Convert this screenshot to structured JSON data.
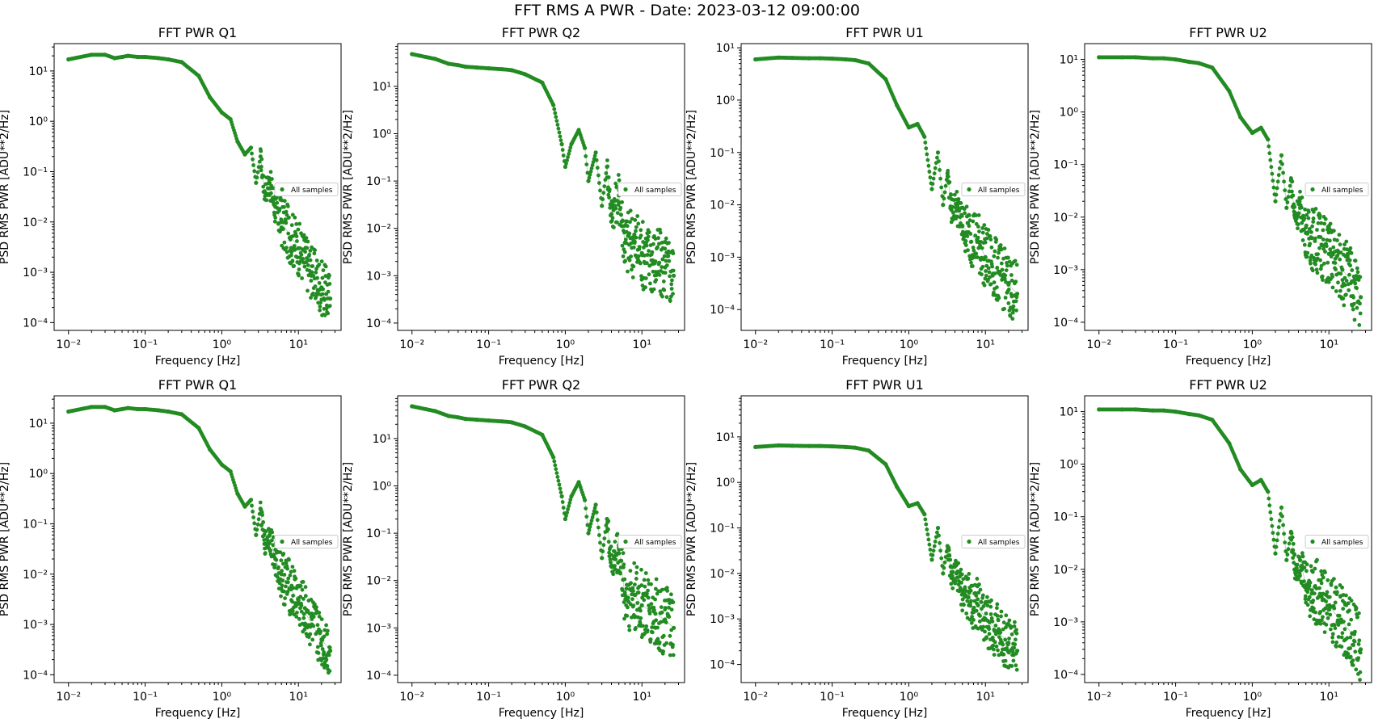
{
  "figure_title": "FFT RMS A PWR - Date: 2023-03-12 09:00:00",
  "colors": {
    "series": "#228B22",
    "axes": "#000000",
    "background": "#ffffff",
    "legend_border": "#cccccc"
  },
  "chart_data": [
    {
      "type": "scatter",
      "title": "FFT PWR Q1",
      "xlabel": "Frequency [Hz]",
      "ylabel": "PSD RMS PWR [ADU**2/Hz]",
      "xscale": "log",
      "yscale": "log",
      "xlim": [
        0.0065,
        36
      ],
      "ylim": [
        7e-05,
        35
      ],
      "yticks_exp": [
        -4,
        -3,
        -2,
        -1,
        0,
        1
      ],
      "xticks_exp": [
        -2,
        -1,
        0,
        1
      ],
      "legend": "All samples",
      "legend_loc": "center right",
      "series": [
        {
          "name": "All samples",
          "x": [
            0.01,
            0.02,
            0.03,
            0.04,
            0.05,
            0.06,
            0.08,
            0.1,
            0.15,
            0.2,
            0.3,
            0.5,
            0.7,
            1.0,
            1.3,
            1.6,
            2.0,
            2.4,
            2.8,
            3.2,
            3.6,
            4.2,
            5,
            6,
            8,
            10,
            15,
            20,
            26
          ],
          "y": [
            17,
            21,
            21,
            18,
            19,
            20,
            19,
            19,
            18,
            17,
            15,
            8,
            3,
            1.5,
            1.1,
            0.4,
            0.22,
            0.3,
            0.06,
            0.2,
            0.04,
            0.06,
            0.02,
            0.01,
            0.005,
            0.003,
            0.001,
            0.0005,
            0.0003
          ],
          "spread": 0.55
        }
      ]
    },
    {
      "type": "scatter",
      "title": "FFT PWR Q2",
      "xlabel": "Frequency [Hz]",
      "ylabel": "PSD RMS PWR [ADU**2/Hz]",
      "xscale": "log",
      "yscale": "log",
      "xlim": [
        0.0065,
        36
      ],
      "ylim": [
        7e-05,
        80
      ],
      "yticks_exp": [
        -4,
        -3,
        -2,
        -1,
        0,
        1
      ],
      "xticks_exp": [
        -2,
        -1,
        0,
        1
      ],
      "legend": "All samples",
      "legend_loc": "center right",
      "series": [
        {
          "name": "All samples",
          "x": [
            0.01,
            0.02,
            0.03,
            0.04,
            0.05,
            0.07,
            0.1,
            0.15,
            0.2,
            0.3,
            0.5,
            0.7,
            0.9,
            1.0,
            1.2,
            1.5,
            1.8,
            2.0,
            2.5,
            3.0,
            3.5,
            4,
            5,
            6,
            8,
            10,
            15,
            20,
            26
          ],
          "y": [
            48,
            38,
            30,
            28,
            26,
            25,
            24,
            23,
            22,
            18,
            12,
            4,
            0.6,
            0.2,
            0.6,
            1.2,
            0.5,
            0.1,
            0.4,
            0.03,
            0.2,
            0.02,
            0.05,
            0.005,
            0.005,
            0.003,
            0.002,
            0.0015,
            0.001
          ],
          "spread": 0.75
        }
      ]
    },
    {
      "type": "scatter",
      "title": "FFT PWR U1",
      "xlabel": "Frequency [Hz]",
      "ylabel": "PSD RMS PWR [ADU**2/Hz]",
      "xscale": "log",
      "yscale": "log",
      "xlim": [
        0.0065,
        36
      ],
      "ylim": [
        4e-05,
        12
      ],
      "yticks_exp": [
        -4,
        -3,
        -2,
        -1,
        0,
        1
      ],
      "xticks_exp": [
        -2,
        -1,
        0,
        1
      ],
      "legend": "All samples",
      "legend_loc": "center right",
      "series": [
        {
          "name": "All samples",
          "x": [
            0.01,
            0.02,
            0.03,
            0.05,
            0.07,
            0.1,
            0.15,
            0.2,
            0.3,
            0.5,
            0.7,
            1.0,
            1.3,
            1.6,
            2.0,
            2.4,
            2.8,
            3.2,
            3.6,
            4.2,
            5,
            6,
            8,
            10,
            15,
            20,
            26
          ],
          "y": [
            6,
            6.5,
            6.4,
            6.3,
            6.3,
            6.2,
            6,
            5.8,
            5,
            2.5,
            0.8,
            0.3,
            0.35,
            0.2,
            0.02,
            0.1,
            0.01,
            0.04,
            0.008,
            0.01,
            0.004,
            0.003,
            0.002,
            0.001,
            0.0005,
            0.0003,
            0.0002
          ],
          "spread": 0.6
        }
      ]
    },
    {
      "type": "scatter",
      "title": "FFT PWR U2",
      "xlabel": "Frequency [Hz]",
      "ylabel": "PSD RMS PWR [ADU**2/Hz]",
      "xscale": "log",
      "yscale": "log",
      "xlim": [
        0.0065,
        36
      ],
      "ylim": [
        7e-05,
        20
      ],
      "yticks_exp": [
        -4,
        -3,
        -2,
        -1,
        0,
        1
      ],
      "xticks_exp": [
        -2,
        -1,
        0,
        1
      ],
      "legend": "All samples",
      "legend_loc": "center right",
      "series": [
        {
          "name": "All samples",
          "x": [
            0.01,
            0.02,
            0.03,
            0.05,
            0.07,
            0.1,
            0.15,
            0.2,
            0.3,
            0.5,
            0.7,
            1.0,
            1.3,
            1.6,
            2.0,
            2.4,
            2.8,
            3.2,
            3.6,
            4.2,
            5,
            6,
            8,
            10,
            15,
            20,
            26
          ],
          "y": [
            11,
            11,
            11,
            10.5,
            10.5,
            10,
            9,
            8.5,
            7,
            2.5,
            0.8,
            0.4,
            0.5,
            0.3,
            0.02,
            0.15,
            0.015,
            0.05,
            0.01,
            0.015,
            0.005,
            0.004,
            0.003,
            0.002,
            0.001,
            0.0006,
            0.0003
          ],
          "spread": 0.65
        }
      ]
    },
    {
      "type": "scatter",
      "title": "FFT PWR Q1",
      "xlabel": "Frequency [Hz]",
      "ylabel": "PSD RMS PWR [ADU**2/Hz]",
      "xscale": "log",
      "yscale": "log",
      "xlim": [
        0.0065,
        36
      ],
      "ylim": [
        7e-05,
        35
      ],
      "yticks_exp": [
        -4,
        -3,
        -2,
        -1,
        0,
        1
      ],
      "xticks_exp": [
        -2,
        -1,
        0,
        1
      ],
      "legend": "All samples",
      "legend_loc": "center right",
      "series": [
        {
          "name": "All samples",
          "x": [
            0.01,
            0.02,
            0.03,
            0.04,
            0.05,
            0.06,
            0.08,
            0.1,
            0.15,
            0.2,
            0.3,
            0.5,
            0.7,
            1.0,
            1.3,
            1.6,
            2.0,
            2.4,
            2.8,
            3.2,
            3.6,
            4.2,
            5,
            6,
            8,
            10,
            15,
            20,
            26
          ],
          "y": [
            17,
            21,
            21,
            18,
            19,
            20,
            19,
            19,
            18,
            17,
            15,
            8,
            3,
            1.5,
            1.1,
            0.4,
            0.22,
            0.3,
            0.06,
            0.2,
            0.04,
            0.06,
            0.02,
            0.01,
            0.005,
            0.003,
            0.001,
            0.0005,
            0.0003
          ],
          "spread": 0.55
        }
      ]
    },
    {
      "type": "scatter",
      "title": "FFT PWR Q2",
      "xlabel": "Frequency [Hz]",
      "ylabel": "PSD RMS PWR [ADU**2/Hz]",
      "xscale": "log",
      "yscale": "log",
      "xlim": [
        0.0065,
        36
      ],
      "ylim": [
        7e-05,
        80
      ],
      "yticks_exp": [
        -4,
        -3,
        -2,
        -1,
        0,
        1
      ],
      "xticks_exp": [
        -2,
        -1,
        0,
        1
      ],
      "legend": "All samples",
      "legend_loc": "center right",
      "series": [
        {
          "name": "All samples",
          "x": [
            0.01,
            0.02,
            0.03,
            0.04,
            0.05,
            0.07,
            0.1,
            0.15,
            0.2,
            0.3,
            0.5,
            0.7,
            0.9,
            1.0,
            1.2,
            1.5,
            1.8,
            2.0,
            2.5,
            3.0,
            3.5,
            4,
            5,
            6,
            8,
            10,
            15,
            20,
            26
          ],
          "y": [
            48,
            38,
            30,
            28,
            26,
            25,
            24,
            23,
            22,
            18,
            12,
            4,
            0.6,
            0.2,
            0.6,
            1.2,
            0.5,
            0.1,
            0.4,
            0.03,
            0.2,
            0.02,
            0.05,
            0.005,
            0.005,
            0.003,
            0.002,
            0.0015,
            0.001
          ],
          "spread": 0.75
        }
      ]
    },
    {
      "type": "scatter",
      "title": "FFT PWR U1",
      "xlabel": "Frequency [Hz]",
      "ylabel": "PSD RMS PWR [ADU**2/Hz]",
      "xscale": "log",
      "yscale": "log",
      "xlim": [
        0.0065,
        36
      ],
      "ylim": [
        4e-05,
        80
      ],
      "yticks_exp": [
        -4,
        -3,
        -2,
        -1,
        0,
        1
      ],
      "xticks_exp": [
        -2,
        -1,
        0,
        1
      ],
      "legend": "All samples",
      "legend_loc": "center right",
      "series": [
        {
          "name": "All samples",
          "x": [
            0.01,
            0.02,
            0.03,
            0.05,
            0.07,
            0.1,
            0.15,
            0.2,
            0.3,
            0.5,
            0.7,
            1.0,
            1.3,
            1.6,
            2.0,
            2.4,
            2.8,
            3.2,
            3.6,
            4.2,
            5,
            6,
            8,
            10,
            15,
            20,
            26
          ],
          "y": [
            6,
            6.5,
            6.4,
            6.3,
            6.3,
            6.2,
            6,
            5.8,
            5,
            2.5,
            0.8,
            0.3,
            0.35,
            0.2,
            0.02,
            0.1,
            0.01,
            0.04,
            0.008,
            0.01,
            0.004,
            0.003,
            0.002,
            0.001,
            0.0005,
            0.0003,
            0.0002
          ],
          "spread": 0.6
        }
      ]
    },
    {
      "type": "scatter",
      "title": "FFT PWR U2",
      "xlabel": "Frequency [Hz]",
      "ylabel": "PSD RMS PWR [ADU**2/Hz]",
      "xscale": "log",
      "yscale": "log",
      "xlim": [
        0.0065,
        36
      ],
      "ylim": [
        7e-05,
        20
      ],
      "yticks_exp": [
        -4,
        -3,
        -2,
        -1,
        0,
        1
      ],
      "xticks_exp": [
        -2,
        -1,
        0,
        1
      ],
      "legend": "All samples",
      "legend_loc": "center right",
      "series": [
        {
          "name": "All samples",
          "x": [
            0.01,
            0.02,
            0.03,
            0.05,
            0.07,
            0.1,
            0.15,
            0.2,
            0.3,
            0.5,
            0.7,
            1.0,
            1.3,
            1.6,
            2.0,
            2.4,
            2.8,
            3.2,
            3.6,
            4.2,
            5,
            6,
            8,
            10,
            15,
            20,
            26
          ],
          "y": [
            11,
            11,
            11,
            10.5,
            10.5,
            10,
            9,
            8.5,
            7,
            2.5,
            0.8,
            0.4,
            0.5,
            0.3,
            0.02,
            0.15,
            0.015,
            0.05,
            0.01,
            0.015,
            0.005,
            0.004,
            0.003,
            0.002,
            0.001,
            0.0006,
            0.0003
          ],
          "spread": 0.65
        }
      ]
    }
  ]
}
